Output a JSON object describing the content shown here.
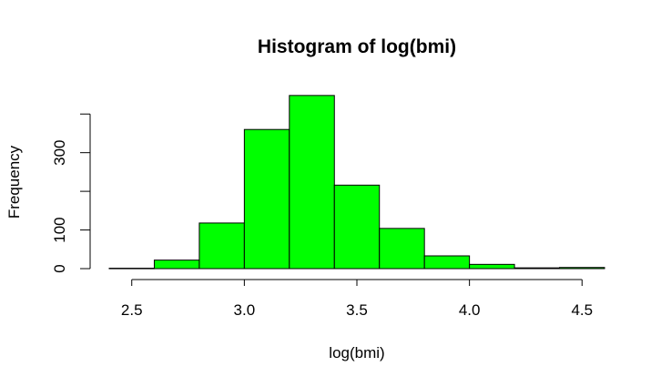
{
  "chart_data": {
    "type": "bar",
    "title": "Histogram of log(bmi)",
    "xlabel": "log(bmi)",
    "ylabel": "Frequency",
    "bins": [
      {
        "x0": 2.4,
        "x1": 2.6,
        "count": 1
      },
      {
        "x0": 2.6,
        "x1": 2.8,
        "count": 22
      },
      {
        "x0": 2.8,
        "x1": 3.0,
        "count": 118
      },
      {
        "x0": 3.0,
        "x1": 3.2,
        "count": 360
      },
      {
        "x0": 3.2,
        "x1": 3.4,
        "count": 448
      },
      {
        "x0": 3.4,
        "x1": 3.6,
        "count": 216
      },
      {
        "x0": 3.6,
        "x1": 3.8,
        "count": 104
      },
      {
        "x0": 3.8,
        "x1": 4.0,
        "count": 33
      },
      {
        "x0": 4.0,
        "x1": 4.2,
        "count": 11
      },
      {
        "x0": 4.2,
        "x1": 4.4,
        "count": 2
      },
      {
        "x0": 4.4,
        "x1": 4.6,
        "count": 3
      }
    ],
    "xlim": [
      2.4,
      4.6
    ],
    "ylim": [
      0,
      450
    ],
    "x_ticks": [
      2.5,
      3.0,
      3.5,
      4.0,
      4.5
    ],
    "x_tick_labels": [
      "2.5",
      "3.0",
      "3.5",
      "4.0",
      "4.5"
    ],
    "y_ticks": [
      0,
      100,
      200,
      300,
      400
    ],
    "y_tick_labels": [
      "0",
      "100",
      "",
      "300",
      ""
    ],
    "bar_color": "#00ff00",
    "grid": false,
    "legend": "none"
  }
}
